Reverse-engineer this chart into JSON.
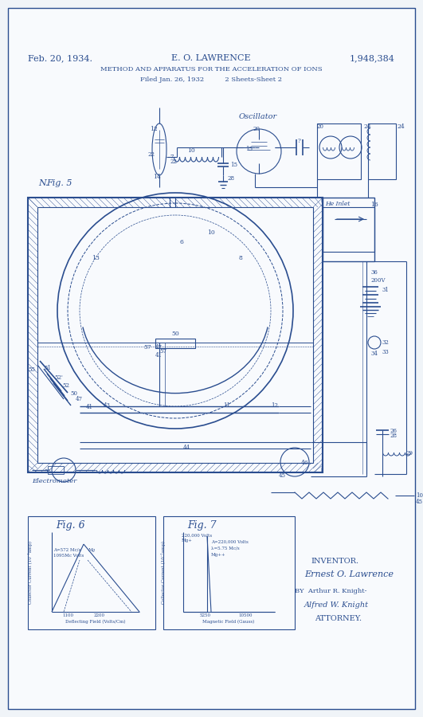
{
  "bg_color": "#f0f4f8",
  "paper_color": "#f8fafd",
  "line_color": "#2a4d8f",
  "title_line1": "Feb. 20, 1934.",
  "title_center": "E. O. LAWRENCE",
  "title_right": "1,948,384",
  "title_line2": "METHOD AND APPARATUS FOR THE ACCELERATION OF IONS",
  "title_line3": "Filed Jan. 26, 1932          2 Sheets-Sheet 2",
  "fig_label": "Fig. 5",
  "fig6_label": "Fig. 6",
  "fig7_label": "Fig. 7",
  "inventor_text": "INVENTOR.",
  "inventor_name": "Ernest O. Lawrence",
  "by_text": "BY  Arthur R. Knight-",
  "attorney_name": "Alfred W. Knight",
  "attorney_text": "ATTORNEY.",
  "oscillator_label": "Oscillator",
  "he_label": "He Inlet",
  "electrometer_label": "Electrometer"
}
